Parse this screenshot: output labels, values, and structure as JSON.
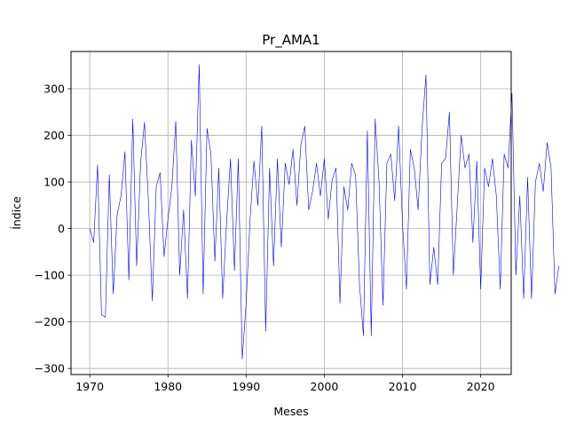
{
  "chart_data": {
    "type": "line",
    "title": "Pr_AMA1",
    "xlabel": "Meses",
    "ylabel": "Índice",
    "xlim": [
      1967.6,
      2023.9
    ],
    "ylim": [
      -313,
      380
    ],
    "x_ticks": [
      1970,
      1980,
      1990,
      2000,
      2010,
      2020
    ],
    "y_ticks": [
      -300,
      -200,
      -100,
      0,
      100,
      200,
      300
    ],
    "y_tick_labels": [
      "−300",
      "−200",
      "−100",
      "0",
      "100",
      "200",
      "300"
    ],
    "grid": true,
    "series": [
      {
        "color": "#0000ff",
        "x_start": 1970.0,
        "x_step": 0.5,
        "values": [
          0,
          -30,
          137,
          -185,
          -190,
          115,
          -140,
          30,
          70,
          165,
          -110,
          235,
          -80,
          140,
          228,
          60,
          -155,
          90,
          120,
          -60,
          20,
          90,
          230,
          -100,
          40,
          -150,
          190,
          70,
          352,
          -140,
          215,
          160,
          -70,
          130,
          -150,
          15,
          150,
          -90,
          150,
          -280,
          -160,
          20,
          145,
          50,
          220,
          -220,
          130,
          -80,
          150,
          -40,
          140,
          95,
          170,
          50,
          180,
          220,
          40,
          80,
          140,
          70,
          150,
          20,
          105,
          130,
          -160,
          90,
          40,
          140,
          115,
          -120,
          -230,
          210,
          -230,
          235,
          100,
          -165,
          140,
          160,
          60,
          220,
          10,
          -130,
          170,
          130,
          40,
          215,
          330,
          -120,
          -40,
          -120,
          140,
          150,
          250,
          -100,
          50,
          200,
          130,
          160,
          -30,
          145,
          -130,
          130,
          90,
          150,
          70,
          -130,
          160,
          130,
          290,
          -100,
          70,
          -150,
          110,
          -150,
          100,
          140,
          80,
          185,
          130,
          -140,
          -80
        ]
      }
    ]
  }
}
